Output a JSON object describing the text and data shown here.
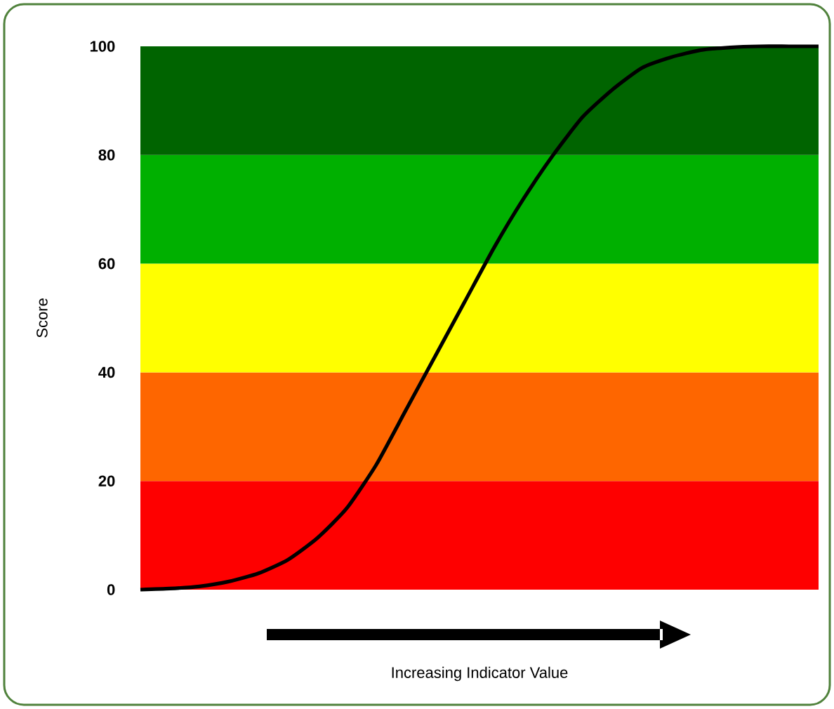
{
  "chart_data": {
    "type": "line",
    "xlabel": "Increasing Indicator Value",
    "ylabel": "Score",
    "categories": [
      null,
      null,
      null,
      null,
      null,
      null,
      null,
      null,
      null,
      null,
      null,
      null,
      null,
      null,
      null,
      null,
      null,
      null,
      null,
      null,
      null,
      null,
      null,
      null
    ],
    "series": [
      {
        "color": "#000000",
        "values": [
          0,
          0.2,
          0.6,
          1.5,
          3,
          5.5,
          9.5,
          15,
          23,
          33,
          43,
          53,
          63,
          72,
          80,
          87,
          92,
          96,
          98,
          99.3,
          99.8,
          100,
          100,
          100
        ]
      }
    ],
    "ylim": [
      0,
      100
    ],
    "yticks": [
      0,
      20,
      40,
      60,
      80,
      100
    ],
    "tick_labels": "y",
    "bands": [
      {
        "axis": "y",
        "from": 0,
        "to": 20,
        "color": "#fe0000"
      },
      {
        "axis": "y",
        "from": 20,
        "to": 40,
        "color": "#fe6600"
      },
      {
        "axis": "y",
        "from": 40,
        "to": 60,
        "color": "#ffff00"
      },
      {
        "axis": "y",
        "from": 60,
        "to": 80,
        "color": "#00b000"
      },
      {
        "axis": "y",
        "from": 80,
        "to": 100,
        "color": "#006400"
      }
    ]
  }
}
